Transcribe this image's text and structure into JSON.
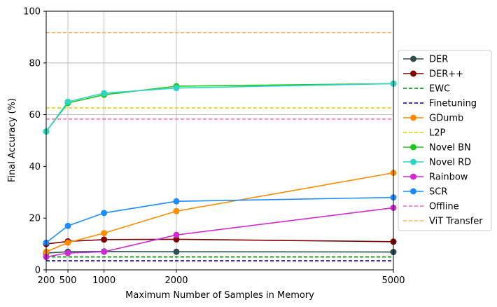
{
  "chart_data": {
    "type": "line",
    "title": "",
    "xlabel": "Maximum Number of Samples in Memory",
    "ylabel": "Final Accuracy (%)",
    "xlim": [
      200,
      5000
    ],
    "ylim": [
      0,
      100
    ],
    "xticks": [
      200,
      500,
      1000,
      2000,
      5000
    ],
    "yticks": [
      0,
      20,
      40,
      60,
      80,
      100
    ],
    "grid": "vertical at x ticks, horizontal at y=60 and y=80",
    "legend_position": "right",
    "x": [
      200,
      500,
      1000,
      2000,
      5000
    ],
    "series": [
      {
        "name": "DER",
        "color": "#2f4f4f",
        "style": "solid",
        "values": [
          6.5,
          7.0,
          7.1,
          7.0,
          6.9
        ]
      },
      {
        "name": "DER++",
        "color": "#800000",
        "style": "solid",
        "values": [
          10.0,
          11.0,
          11.7,
          11.8,
          10.9
        ]
      },
      {
        "name": "EWC",
        "color": "#008000",
        "style": "dashed",
        "values": [
          5.0,
          5.0,
          5.0,
          5.0,
          5.0
        ]
      },
      {
        "name": "Finetuning",
        "color": "#000080",
        "style": "dashed",
        "values": [
          3.5,
          3.5,
          3.5,
          3.5,
          3.5
        ]
      },
      {
        "name": "GDumb",
        "color": "#ff8c00",
        "style": "solid",
        "values": [
          7.0,
          10.5,
          14.2,
          22.7,
          37.5
        ]
      },
      {
        "name": "L2P",
        "color": "#e6c91a",
        "style": "dashed",
        "values": [
          62.6,
          62.6,
          62.6,
          62.6,
          62.6
        ]
      },
      {
        "name": "Novel BN",
        "color": "#1ec81e",
        "style": "solid",
        "values": [
          53.5,
          64.5,
          67.7,
          71.0,
          72.0
        ]
      },
      {
        "name": "Novel RD",
        "color": "#2fd6c8",
        "style": "solid",
        "values": [
          53.5,
          65.0,
          68.3,
          70.3,
          72.0
        ]
      },
      {
        "name": "Rainbow",
        "color": "#d02bd0",
        "style": "solid",
        "values": [
          5.0,
          6.5,
          7.0,
          13.5,
          24.0
        ]
      },
      {
        "name": "SCR",
        "color": "#1e8cff",
        "style": "solid",
        "values": [
          10.5,
          17.0,
          22.0,
          26.5,
          28.0
        ]
      },
      {
        "name": "Offline",
        "color": "#ff69b4",
        "style": "dashed",
        "values": [
          58.3,
          58.3,
          58.3,
          58.3,
          58.3
        ]
      },
      {
        "name": "ViT Transfer",
        "color": "#ffb060",
        "style": "dashed",
        "values": [
          91.7,
          91.7,
          91.7,
          91.7,
          91.7
        ]
      }
    ]
  }
}
